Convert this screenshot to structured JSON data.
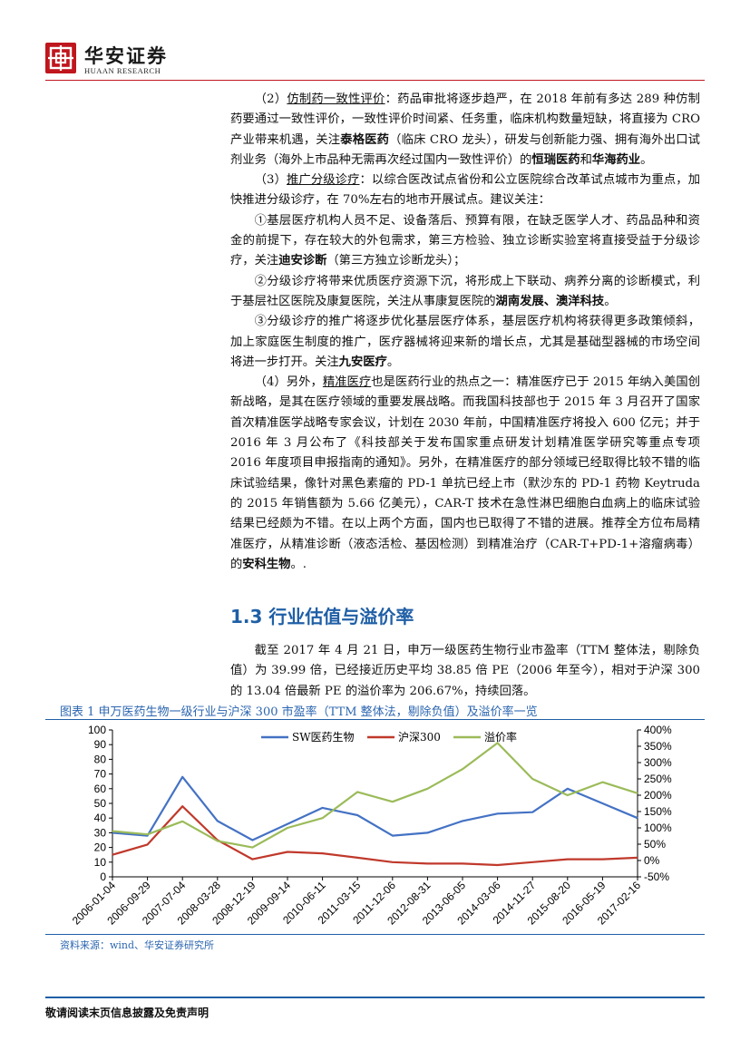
{
  "header": {
    "logo_cn": "华安证券",
    "logo_en": "HUAAN RESEARCH"
  },
  "body": {
    "p1": [
      {
        "t": "（2）"
      },
      {
        "t": "仿制药一致性评价",
        "u": true
      },
      {
        "t": "：药品审批将逐步趋严，在 2018 年前有多达 289 种仿制药要通过一致性评价，一致性评价时间紧、任务重，临床机构数量短缺，将直接为 CRO 产业带来机遇，关注"
      },
      {
        "t": "泰格医药",
        "b": true
      },
      {
        "t": "（临床 CRO 龙头），研发与创新能力强、拥有海外出口试剂业务（海外上市品种无需再次经过国内一致性评价）的"
      },
      {
        "t": "恒瑞医药",
        "b": true
      },
      {
        "t": "和"
      },
      {
        "t": "华海药业",
        "b": true
      },
      {
        "t": "。"
      }
    ],
    "p2": [
      {
        "t": "（3）"
      },
      {
        "t": "推广分级诊疗",
        "u": true
      },
      {
        "t": "：以综合医改试点省份和公立医院综合改革试点城市为重点，加快推进分级诊疗，在 70%左右的地市开展试点。建议关注："
      }
    ],
    "p3": [
      {
        "t": "①基层医疗机构人员不足、设备落后、预算有限，在缺乏医学人才、药品品种和资金的前提下，存在较大的外包需求，第三方检验、独立诊断实验室将直接受益于分级诊疗，关注"
      },
      {
        "t": "迪安诊断",
        "b": true
      },
      {
        "t": "（第三方独立诊断龙头）；"
      }
    ],
    "p4": [
      {
        "t": "②分级诊疗将带来优质医疗资源下沉，将形成上下联动、病养分离的诊断模式，利于基层社区医院及康复医院，关注从事康复医院的"
      },
      {
        "t": "湖南发展、澳洋科技",
        "b": true
      },
      {
        "t": "。"
      }
    ],
    "p5": [
      {
        "t": "③分级诊疗的推广将逐步优化基层医疗体系，基层医疗机构将获得更多政策倾斜，加上家庭医生制度的推广，医疗器械将迎来新的增长点，尤其是基础型器械的市场空间将进一步打开。关注"
      },
      {
        "t": "九安医疗",
        "b": true
      },
      {
        "t": "。"
      }
    ],
    "p6": [
      {
        "t": "（4）另外，"
      },
      {
        "t": "精准医疗",
        "u": true
      },
      {
        "t": "也是医药行业的热点之一：精准医疗已于 2015 年纳入美国创新战略，是其在医疗领域的重要发展战略。而我国科技部也于 2015 年 3 月召开了国家首次精准医学战略专家会议，计划在 2030 年前，中国精准医疗将投入 600 亿元；并于 2016 年 3 月公布了《科技部关于发布国家重点研发计划精准医学研究等重点专项 2016 年度项目申报指南的通知》。另外，在精准医疗的部分领域已经取得比较不错的临床试验结果，像针对黑色素瘤的 PD-1 单抗已经上市（默沙东的 PD-1 药物 Keytruda 的 2015 年销售额为 5.66 亿美元），CAR-T 技术在急性淋巴细胞白血病上的临床试验结果已经颇为不错。在以上两个方面，国内也已取得了不错的进展。推荐全方位布局精准医疗，从精准诊断（液态活检、基因检测）到精准治疗（CAR-T+PD-1+溶瘤病毒）的"
      },
      {
        "t": "安科生物",
        "b": true
      },
      {
        "t": "。."
      }
    ],
    "section_title": "1.3 行业估值与溢价率",
    "p7": "截至 2017 年 4 月 21 日，申万一级医药生物行业市盈率（TTM 整体法，剔除负值）为 39.99 倍，已经接近历史平均 38.85 倍 PE（2006 年至今），相对于沪深 300 的 13.04 倍最新 PE 的溢价率为 206.67%，持续回落。"
  },
  "figure": {
    "caption": "图表 1 申万医药生物一级行业与沪深 300 市盈率（TTM 整体法，剔除负值）及溢价率一览",
    "source": "资料来源：wind、华安证券研究所"
  },
  "chart_data": {
    "type": "line",
    "title": "",
    "x": [
      "2006-01-04",
      "2006-09-29",
      "2007-07-04",
      "2008-03-28",
      "2008-12-19",
      "2009-09-14",
      "2010-06-11",
      "2011-03-15",
      "2011-12-06",
      "2012-08-31",
      "2013-06-05",
      "2014-03-06",
      "2014-11-27",
      "2015-08-20",
      "2016-05-19",
      "2017-02-16"
    ],
    "ylim_left": [
      0,
      100
    ],
    "yticks_left": [
      "0",
      "10",
      "20",
      "30",
      "40",
      "50",
      "60",
      "70",
      "80",
      "90",
      "100"
    ],
    "ylim_right": [
      -50,
      400
    ],
    "yticks_right": [
      "-50%",
      "0%",
      "50%",
      "100%",
      "150%",
      "200%",
      "250%",
      "300%",
      "350%",
      "400%"
    ],
    "series": [
      {
        "name": "SW医药生物",
        "axis": "left",
        "color": "#4472c4",
        "values": [
          30,
          28,
          68,
          38,
          25,
          36,
          47,
          42,
          28,
          30,
          38,
          43,
          44,
          60,
          50,
          40
        ]
      },
      {
        "name": "沪深300",
        "axis": "left",
        "color": "#c0392b",
        "values": [
          15,
          22,
          48,
          25,
          12,
          17,
          16,
          13,
          10,
          9,
          9,
          8,
          10,
          12,
          12,
          13
        ]
      },
      {
        "name": "溢价率",
        "axis": "right",
        "color": "#9bbb59",
        "values": [
          90,
          80,
          120,
          60,
          40,
          100,
          130,
          210,
          180,
          220,
          280,
          360,
          250,
          200,
          240,
          206
        ]
      }
    ],
    "legend_position": "top-center",
    "grid": false
  },
  "footer": {
    "text": "敬请阅读末页信息披露及免责声明"
  },
  "colors": {
    "brand_red": "#c0161e",
    "accent_blue": "#1f5fa6"
  }
}
